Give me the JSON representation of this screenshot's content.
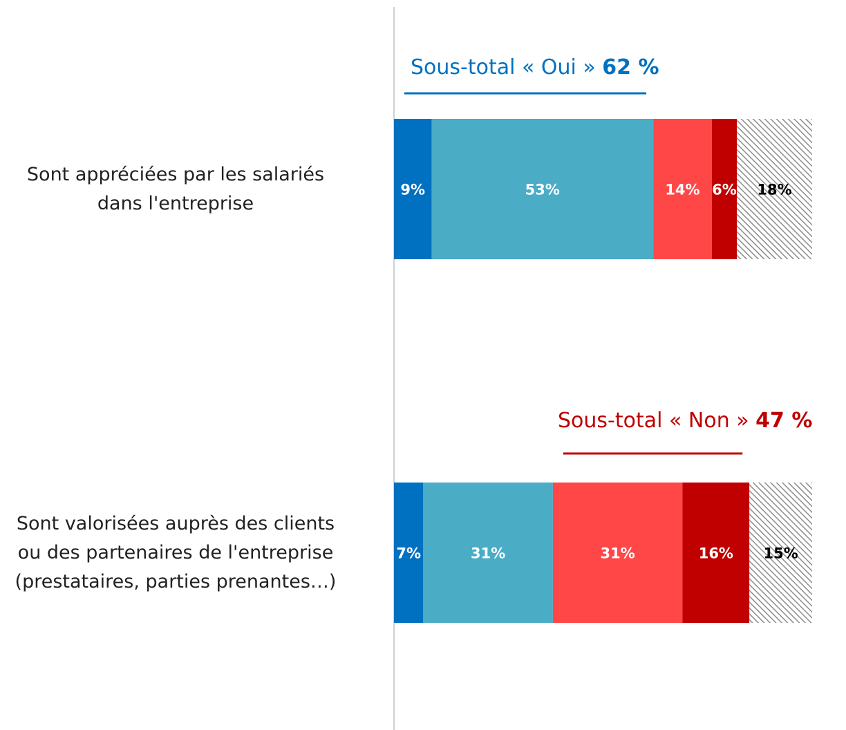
{
  "chart_data": {
    "type": "stacked-bar-horizontal",
    "categories": [
      "Sont appréciées par les salariés\ndans l'entreprise",
      "Sont valorisées auprès des clients\nou des partenaires de l'entreprise\n(prestataires, parties prenantes…)"
    ],
    "series": [
      {
        "color": "#0070c0",
        "values": [
          9,
          7
        ],
        "value_labels": [
          "9%",
          "7%"
        ]
      },
      {
        "color": "#4bacc6",
        "values": [
          53,
          31
        ],
        "value_labels": [
          "53%",
          "31%"
        ]
      },
      {
        "color": "#ff4747",
        "values": [
          14,
          31
        ],
        "value_labels": [
          "14%",
          "31%"
        ]
      },
      {
        "color": "#c00000",
        "values": [
          6,
          16
        ],
        "value_labels": [
          "6%",
          "16%"
        ]
      },
      {
        "color": "#8c8c8c",
        "hatch": true,
        "values": [
          18,
          15
        ],
        "value_labels": [
          "18%",
          "15%"
        ]
      }
    ],
    "annotations": [
      {
        "text": "Sous-total « Oui »",
        "value": 62,
        "value_label": "62 %",
        "color": "#0070c0"
      },
      {
        "text": "Sous-total « Non »",
        "value": 47,
        "value_label": "47 %",
        "color": "#c00000"
      }
    ]
  }
}
